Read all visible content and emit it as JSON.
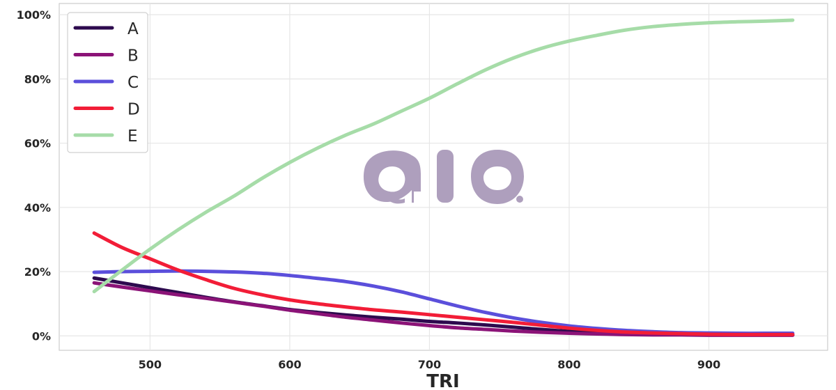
{
  "chart_data": {
    "type": "line",
    "title": "",
    "xlabel": "TRI",
    "ylabel": "",
    "xlim": [
      435,
      985
    ],
    "ylim": [
      -0.045,
      1.035
    ],
    "x_ticks": [
      500,
      600,
      700,
      800,
      900
    ],
    "x_tick_labels": [
      "500",
      "600",
      "700",
      "800",
      "900"
    ],
    "y_ticks": [
      0,
      0.2,
      0.4,
      0.6,
      0.8,
      1.0
    ],
    "y_tick_labels": [
      "0%",
      "20%",
      "40%",
      "60%",
      "80%",
      "100%"
    ],
    "grid": true,
    "legend_position": "top-left",
    "x": [
      460,
      480,
      500,
      520,
      540,
      560,
      580,
      600,
      620,
      640,
      660,
      680,
      700,
      720,
      740,
      760,
      780,
      800,
      820,
      840,
      860,
      880,
      900,
      920,
      940,
      960
    ],
    "series": [
      {
        "name": "A",
        "color": "#2d0a4e",
        "values": [
          0.18,
          0.165,
          0.15,
          0.135,
          0.12,
          0.106,
          0.094,
          0.082,
          0.073,
          0.065,
          0.058,
          0.052,
          0.045,
          0.04,
          0.034,
          0.027,
          0.02,
          0.014,
          0.01,
          0.007,
          0.005,
          0.004,
          0.003,
          0.003,
          0.003,
          0.003
        ]
      },
      {
        "name": "B",
        "color": "#8b1377",
        "values": [
          0.165,
          0.152,
          0.14,
          0.128,
          0.117,
          0.105,
          0.093,
          0.08,
          0.069,
          0.058,
          0.049,
          0.04,
          0.032,
          0.025,
          0.02,
          0.015,
          0.011,
          0.008,
          0.006,
          0.004,
          0.003,
          0.003,
          0.002,
          0.002,
          0.002,
          0.002
        ]
      },
      {
        "name": "C",
        "color": "#5b4fdb",
        "values": [
          0.198,
          0.2,
          0.201,
          0.202,
          0.201,
          0.199,
          0.195,
          0.188,
          0.179,
          0.169,
          0.155,
          0.137,
          0.115,
          0.093,
          0.073,
          0.056,
          0.042,
          0.031,
          0.023,
          0.017,
          0.013,
          0.01,
          0.009,
          0.008,
          0.008,
          0.008
        ]
      },
      {
        "name": "D",
        "color": "#f21d37",
        "values": [
          0.32,
          0.275,
          0.24,
          0.205,
          0.175,
          0.148,
          0.128,
          0.112,
          0.1,
          0.09,
          0.081,
          0.074,
          0.066,
          0.058,
          0.05,
          0.042,
          0.033,
          0.024,
          0.017,
          0.012,
          0.009,
          0.007,
          0.005,
          0.004,
          0.004,
          0.004
        ]
      },
      {
        "name": "E",
        "color": "#a6dca8",
        "values": [
          0.138,
          0.205,
          0.27,
          0.33,
          0.385,
          0.435,
          0.49,
          0.54,
          0.585,
          0.625,
          0.66,
          0.7,
          0.74,
          0.785,
          0.828,
          0.865,
          0.895,
          0.918,
          0.936,
          0.952,
          0.963,
          0.97,
          0.975,
          0.978,
          0.98,
          0.983
        ]
      }
    ]
  },
  "watermark": {
    "color": "#ae9fbd"
  }
}
